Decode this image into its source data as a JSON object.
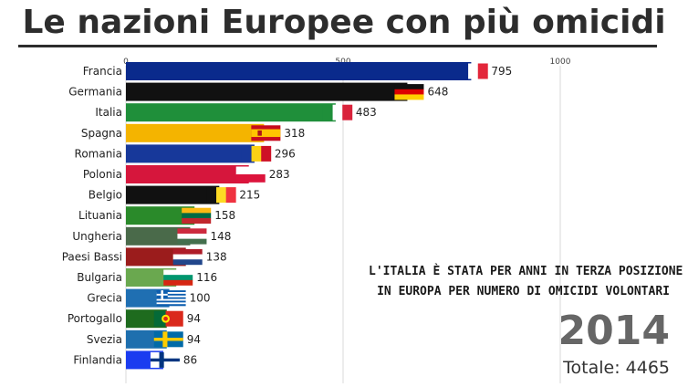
{
  "title": "Le nazioni Europee con più omicidi",
  "chart_data": {
    "type": "bar",
    "orientation": "horizontal",
    "categories": [
      "Francia",
      "Germania",
      "Italia",
      "Spagna",
      "Romania",
      "Polonia",
      "Belgio",
      "Lituania",
      "Ungheria",
      "Paesi Bassi",
      "Bulgaria",
      "Grecia",
      "Portogallo",
      "Svezia",
      "Finlandia"
    ],
    "values": [
      795,
      648,
      483,
      318,
      296,
      283,
      215,
      158,
      148,
      138,
      116,
      100,
      94,
      94,
      86
    ],
    "colors": [
      "#0a2a8c",
      "#111111",
      "#1f8f3a",
      "#f4b400",
      "#17389a",
      "#d6163c",
      "#111111",
      "#2a8a2a",
      "#4a6a4a",
      "#9b1c1c",
      "#6aa84f",
      "#1f6fb2",
      "#1e6b1e",
      "#1e6fae",
      "#1b3cf0"
    ],
    "flags": [
      "france",
      "germany",
      "italy",
      "spain",
      "romania",
      "poland",
      "belgium",
      "lithuania",
      "hungary",
      "netherlands",
      "bulgaria",
      "greece",
      "portugal",
      "sweden",
      "finland"
    ],
    "xticks": [
      0,
      500,
      1000
    ],
    "xlim": [
      0,
      1000
    ],
    "grid": true,
    "title": "Le nazioni Europee con più omicidi",
    "xlabel": "",
    "ylabel": ""
  },
  "annotation": {
    "line1": "L'Italia è stata per anni in terza posizione",
    "line2": "in Europa per numero di omicidi volontari"
  },
  "year": "2014",
  "total": "Totale: 4465"
}
